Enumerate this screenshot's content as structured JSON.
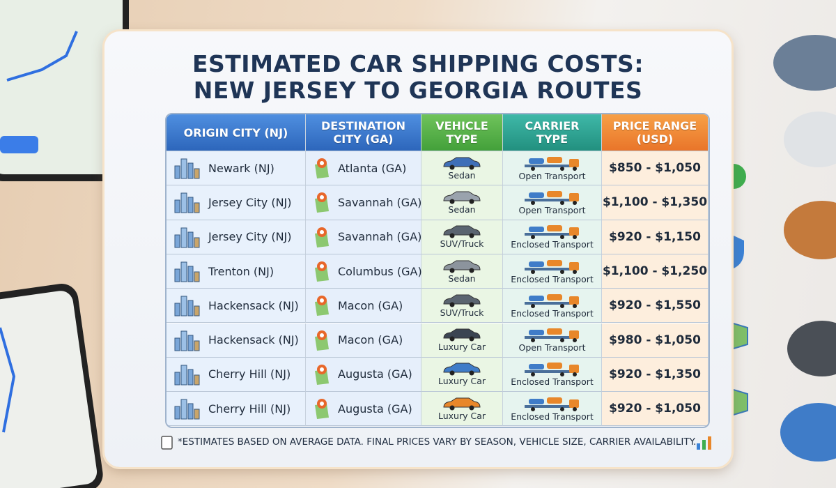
{
  "title_lines": [
    "ESTIMATED CAR SHIPPING COSTS:",
    "NEW JERSEY TO GEORGIA ROUTES"
  ],
  "table": {
    "headers": [
      "ORIGIN CITY (NJ)",
      "DESTINATION CITY (GA)",
      "VEHICLE TYPE",
      "CARRIER TYPE",
      "PRICE RANGE (USD)"
    ],
    "rows": [
      [
        "Newark (NJ)",
        "Atlanta (GA)",
        "Sedan",
        "Open Transport",
        "$850 - $1,050"
      ],
      [
        "Jersey City (NJ)",
        "Savannah (GA)",
        "Sedan",
        "Open Transport",
        "$1,100 - $1,350"
      ],
      [
        "Jersey City (NJ)",
        "Savannah (GA)",
        "SUV/Truck",
        "Enclosed Transport",
        "$920 - $1,150"
      ],
      [
        "Trenton (NJ)",
        "Columbus (GA)",
        "Sedan",
        "Enclosed Transport",
        "$1,100 - $1,250"
      ],
      [
        "Hackensack (NJ)",
        "Macon (GA)",
        "SUV/Truck",
        "Enclosed Transport",
        "$920 - $1,550"
      ],
      [
        "Hackensack (NJ)",
        "Macon (GA)",
        "Luxury Car",
        "Open Transport",
        "$980 - $1,050"
      ],
      [
        "Cherry Hill (NJ)",
        "Augusta (GA)",
        "Luxury Car",
        "Enclosed Transport",
        "$920 - $1,350"
      ],
      [
        "Cherry Hill (NJ)",
        "Augusta (GA)",
        "Luxury Car",
        "Enclosed Transport",
        "$920 - $1,050"
      ]
    ]
  },
  "footnote": "*ESTIMATES BASED ON AVERAGE DATA. FINAL PRICES VARY BY SEASON, VEHICLE SIZE, CARRIER AVAILABILITY."
}
